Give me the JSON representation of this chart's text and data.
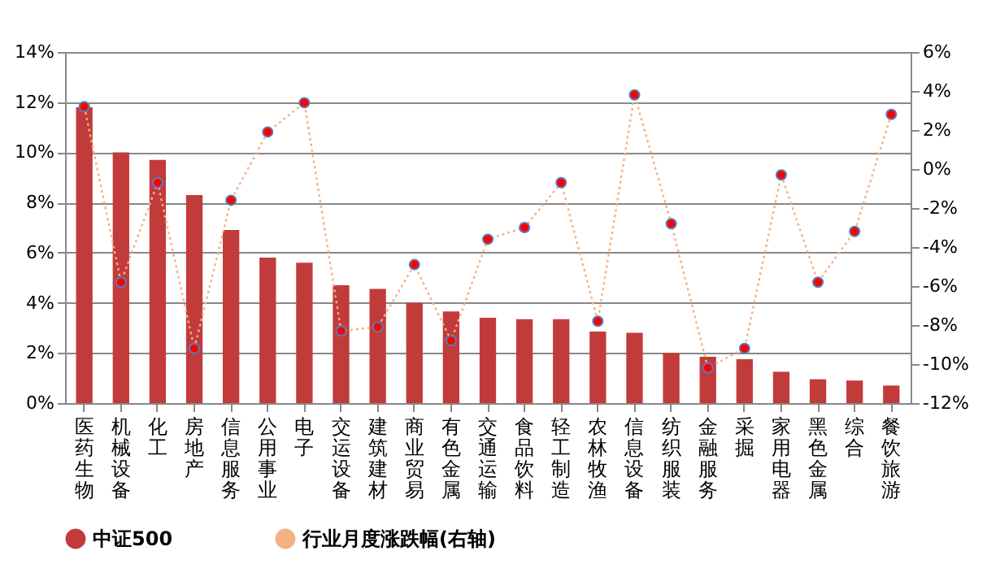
{
  "chart_data": {
    "type": "bar",
    "categories": [
      "医药生物",
      "机械设备",
      "化工",
      "房地产",
      "信息服务",
      "公用事业",
      "电子",
      "交运设备",
      "建筑建材",
      "商业贸易",
      "有色金属",
      "交通运输",
      "食品饮料",
      "轻工制造",
      "农林牧渔",
      "信息设备",
      "纺织服装",
      "金融服务",
      "采掘",
      "家用电器",
      "黑色金属",
      "综合",
      "餐饮旅游"
    ],
    "series": [
      {
        "name": "中证500",
        "color": "#c23b3b",
        "values": [
          11.8,
          10.0,
          9.7,
          8.3,
          6.9,
          5.8,
          5.6,
          4.7,
          4.55,
          4.0,
          3.65,
          3.4,
          3.35,
          3.35,
          2.85,
          2.8,
          2.0,
          1.85,
          1.75,
          1.25,
          0.95,
          0.9,
          0.7
        ]
      },
      {
        "name": "行业月度涨跌幅(右轴)",
        "type": "line",
        "axis": "y2",
        "color": "#f4b183",
        "values": [
          3.2,
          -5.8,
          -0.7,
          -9.2,
          -1.6,
          1.9,
          3.4,
          -8.3,
          -8.1,
          -4.9,
          -8.8,
          -3.6,
          -3.0,
          -0.7,
          -7.8,
          3.8,
          -2.8,
          -10.2,
          -9.2,
          -0.3,
          -5.8,
          -3.2,
          2.8
        ]
      }
    ],
    "ylim": [
      0,
      14
    ],
    "yticks": [
      {
        "value": 0,
        "label": "0%"
      },
      {
        "value": 2,
        "label": "2%"
      },
      {
        "value": 4,
        "label": "4%"
      },
      {
        "value": 6,
        "label": "6%"
      },
      {
        "value": 8,
        "label": "8%"
      },
      {
        "value": 10,
        "label": "10%"
      },
      {
        "value": 12,
        "label": "12%"
      },
      {
        "value": 14,
        "label": "14%"
      }
    ],
    "y2lim": [
      -12,
      6
    ],
    "y2ticks": [
      {
        "value": -12,
        "label": "-12%"
      },
      {
        "value": -10,
        "label": "-10%"
      },
      {
        "value": -8,
        "label": "-8%"
      },
      {
        "value": -6,
        "label": "-6%"
      },
      {
        "value": -4,
        "label": "-4%"
      },
      {
        "value": -2,
        "label": "-2%"
      },
      {
        "value": 0,
        "label": "0%"
      },
      {
        "value": 2,
        "label": "2%"
      },
      {
        "value": 4,
        "label": "4%"
      },
      {
        "value": 6,
        "label": "6%"
      }
    ],
    "grid": "y",
    "legend": "bottom",
    "marker": "circle",
    "line_style": "dotted"
  }
}
